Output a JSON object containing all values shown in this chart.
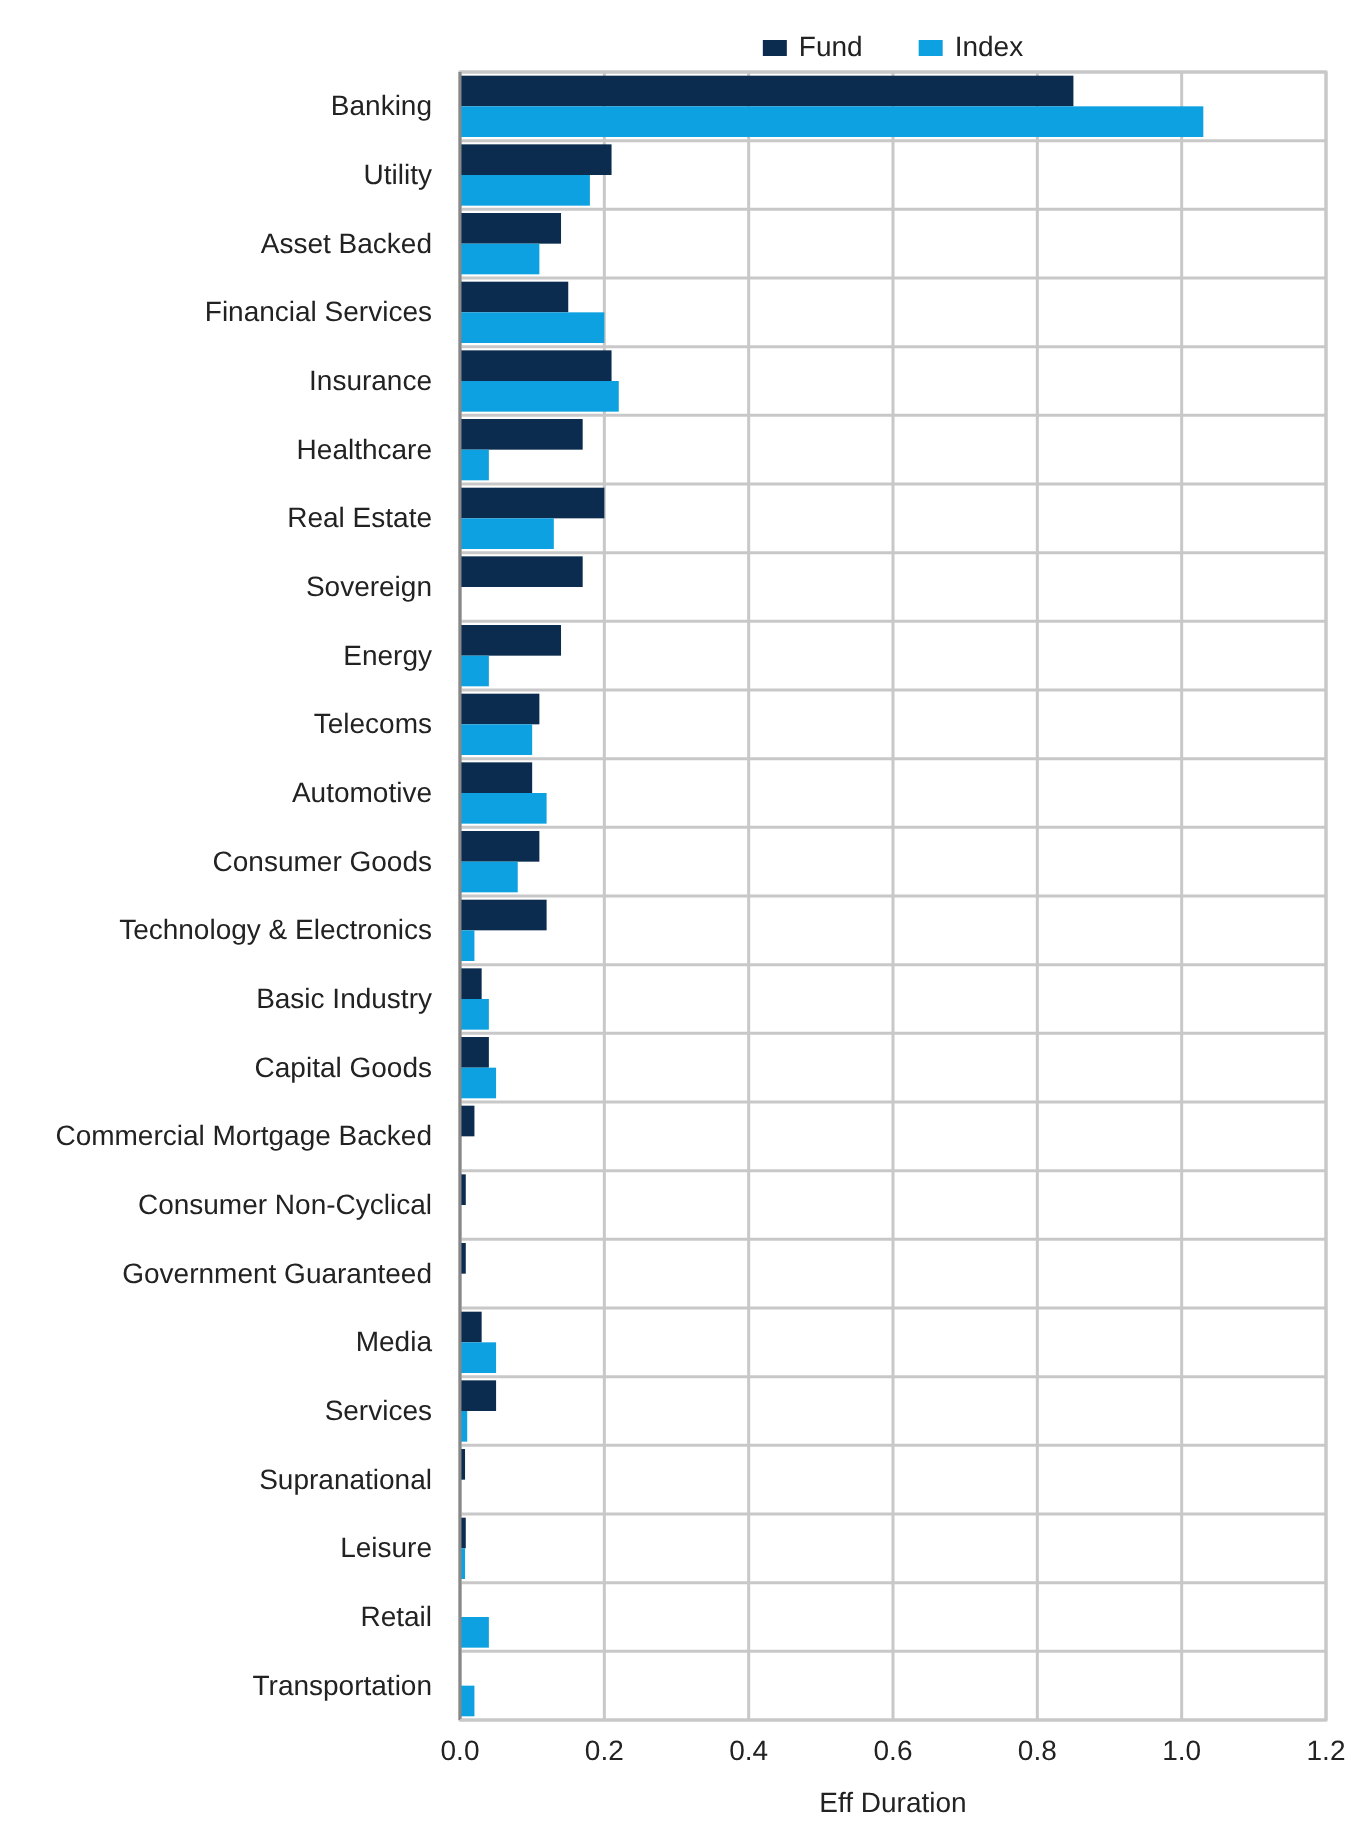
{
  "chart_data": {
    "type": "bar",
    "orientation": "horizontal",
    "xlabel": "Eff Duration",
    "legend": "top",
    "grid": true,
    "categories": [
      "Banking",
      "Utility",
      "Asset Backed",
      "Financial Services",
      "Insurance",
      "Healthcare",
      "Real Estate",
      "Sovereign",
      "Energy",
      "Telecoms",
      "Automotive",
      "Consumer Goods",
      "Technology & Electronics",
      "Basic Industry",
      "Capital Goods",
      "Commercial Mortgage Backed",
      "Consumer Non-Cyclical",
      "Government Guaranteed",
      "Media",
      "Services",
      "Supranational",
      "Leisure",
      "Retail",
      "Transportation"
    ],
    "series": [
      {
        "name": "Fund",
        "color": "#0b2c4e",
        "values": [
          0.85,
          0.21,
          0.14,
          0.15,
          0.21,
          0.17,
          0.2,
          0.17,
          0.14,
          0.11,
          0.1,
          0.11,
          0.12,
          0.03,
          0.04,
          0.02,
          0.008,
          0.008,
          0.03,
          0.05,
          0.007,
          0.008,
          0,
          0
        ]
      },
      {
        "name": "Index",
        "color": "#0ea1e1",
        "values": [
          1.03,
          0.18,
          0.11,
          0.2,
          0.22,
          0.04,
          0.13,
          0,
          0.04,
          0.1,
          0.12,
          0.08,
          0.02,
          0.04,
          0.05,
          0,
          0,
          0,
          0.05,
          0.01,
          0,
          0.007,
          0.04,
          0.02
        ]
      }
    ],
    "xlim": [
      0,
      1.2
    ],
    "xticks": [
      {
        "value": 0,
        "label": "0.0"
      },
      0.2,
      0.4,
      0.6,
      0.8,
      {
        "value": 1,
        "label": "1.0"
      },
      1.2
    ]
  }
}
